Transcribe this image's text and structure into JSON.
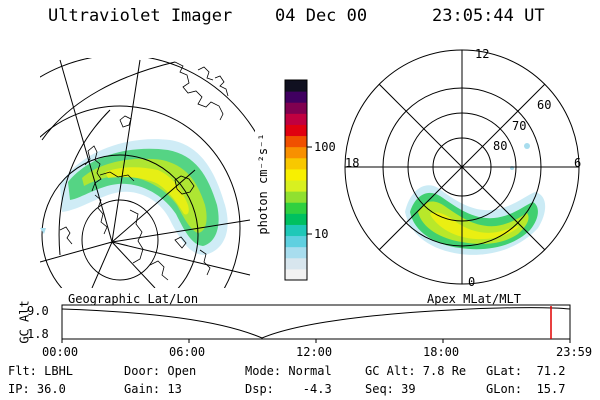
{
  "header": {
    "instrument": "Ultraviolet Imager",
    "date": "04 Dec 00",
    "time": "23:05:44 UT"
  },
  "colorbar": {
    "label": "photon cm⁻²s⁻¹",
    "tick_100": "100",
    "tick_10": "10",
    "colors": [
      "#f2f2f2",
      "#d8e6ee",
      "#a8ddee",
      "#5fd0e0",
      "#1fc8b8",
      "#00c060",
      "#30d040",
      "#90e030",
      "#d8f020",
      "#f8f000",
      "#f8c800",
      "#f89000",
      "#f05000",
      "#e00010",
      "#c00040",
      "#800050",
      "#400060",
      "#101020"
    ]
  },
  "geo_map": {
    "label": "Geographic Lat/Lon"
  },
  "polar_plot": {
    "label": "Apex MLat/MLT",
    "mlt_labels": {
      "top": "12",
      "left": "18",
      "right": "6",
      "bottom": "0"
    },
    "lat_labels": [
      "60",
      "70",
      "80"
    ]
  },
  "timeline": {
    "ylabel": "GC Alt",
    "y_ticks": [
      "9.0",
      "1.8"
    ],
    "x_ticks": [
      "00:00",
      "06:00",
      "12:00",
      "18:00",
      "23:59"
    ],
    "current_fraction": 0.9625
  },
  "info": {
    "flt": "Flt: LBHL",
    "ip": "IP: 36.0",
    "door": "Door: Open",
    "gain": "Gain: 13",
    "mode": "Mode: Normal",
    "dsp": "Dsp:    -4.3",
    "gc_alt": "GC Alt: 7.8 Re",
    "seq": "Seq: 39",
    "glat": "GLat:  71.2",
    "glon": "GLon:  15.7"
  }
}
